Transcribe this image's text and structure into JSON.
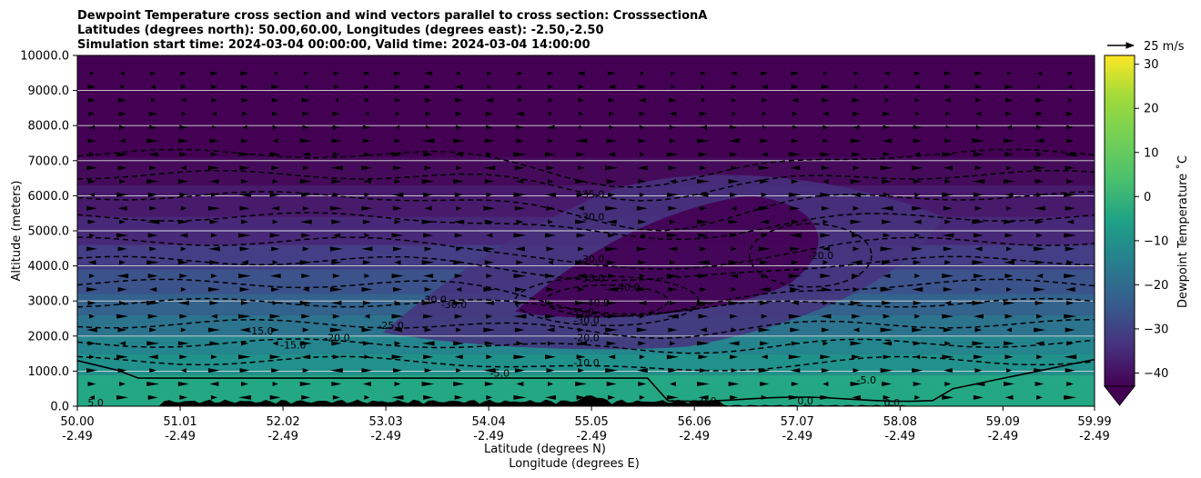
{
  "title": {
    "line1": "Dewpoint Temperature cross section and wind vectors parallel to cross section: CrosssectionA",
    "line2": "Latitudes (degrees north): 50.00,60.00, Longitudes (degrees east): -2.50,-2.50",
    "line3": "Simulation start time: 2024-03-04 00:00:00, Valid time: 2024-03-04 14:00:00"
  },
  "chart_data": {
    "type": "heatmap",
    "ylabel": "Altitude (meters)",
    "xlabel_lat": "Latitude (degrees N)",
    "xlabel_lon": "Longitude (degrees E)",
    "ylim": [
      0,
      10000
    ],
    "y_ticks": [
      "0.0",
      "1000.0",
      "2000.0",
      "3000.0",
      "4000.0",
      "5000.0",
      "6000.0",
      "7000.0",
      "8000.0",
      "9000.0",
      "10000.0"
    ],
    "y_tick_values": [
      0,
      1000,
      2000,
      3000,
      4000,
      5000,
      6000,
      7000,
      8000,
      9000,
      10000
    ],
    "x_ticks": [
      {
        "lat": "50.00",
        "lon": "-2.49"
      },
      {
        "lat": "51.01",
        "lon": "-2.49"
      },
      {
        "lat": "52.02",
        "lon": "-2.49"
      },
      {
        "lat": "53.03",
        "lon": "-2.49"
      },
      {
        "lat": "54.04",
        "lon": "-2.49"
      },
      {
        "lat": "55.05",
        "lon": "-2.49"
      },
      {
        "lat": "56.06",
        "lon": "-2.49"
      },
      {
        "lat": "57.07",
        "lon": "-2.49"
      },
      {
        "lat": "58.08",
        "lon": "-2.49"
      },
      {
        "lat": "59.09",
        "lon": "-2.49"
      },
      {
        "lat": "59.99",
        "lon": "-2.49"
      }
    ],
    "grid": "horizontal lines only",
    "colorbar": {
      "label": "Dewpoint Temperature ˚C",
      "ticks": [
        "30",
        "20",
        "10",
        "0",
        "−10",
        "−20",
        "−30",
        "−40"
      ],
      "tick_values": [
        30,
        20,
        10,
        0,
        -10,
        -20,
        -30,
        -40
      ],
      "range": [
        -43,
        32
      ],
      "extend": "min",
      "colormap": "viridis"
    },
    "wind_key": {
      "label": "25 m/s",
      "value": 25
    },
    "contour_labels": [
      {
        "text": "5.0",
        "lat": 50.18,
        "alt": 100
      },
      {
        "text": "-15.0",
        "lat": 51.8,
        "alt": 2150
      },
      {
        "text": "-15.0",
        "lat": 52.12,
        "alt": 1750
      },
      {
        "text": "-20.0",
        "lat": 52.55,
        "alt": 1950
      },
      {
        "text": "-25.0",
        "lat": 53.08,
        "alt": 2300
      },
      {
        "text": "-30.0",
        "lat": 53.5,
        "alt": 3050
      },
      {
        "text": "-30.0",
        "lat": 53.7,
        "alt": 2900
      },
      {
        "text": "-5.0",
        "lat": 54.15,
        "alt": 950
      },
      {
        "text": "-35.0",
        "lat": 55.05,
        "alt": 6050
      },
      {
        "text": "-30.0",
        "lat": 55.05,
        "alt": 5400
      },
      {
        "text": "-30.0",
        "lat": 55.05,
        "alt": 4200
      },
      {
        "text": "-35.0",
        "lat": 55.05,
        "alt": 3650
      },
      {
        "text": "-40.0",
        "lat": 55.4,
        "alt": 3400
      },
      {
        "text": "-40.0",
        "lat": 55.1,
        "alt": 2950
      },
      {
        "text": "-35.0",
        "lat": 54.95,
        "alt": 2700
      },
      {
        "text": "-30.0",
        "lat": 55.0,
        "alt": 2450
      },
      {
        "text": "-20.0",
        "lat": 55.0,
        "alt": 1950
      },
      {
        "text": "-10.0",
        "lat": 55.0,
        "alt": 1250
      },
      {
        "text": "-20.0",
        "lat": 57.3,
        "alt": 4300
      },
      {
        "text": "-5.0",
        "lat": 57.75,
        "alt": 750
      },
      {
        "text": "0.0",
        "lat": 56.2,
        "alt": 150
      },
      {
        "text": "0.0",
        "lat": 57.15,
        "alt": 150
      },
      {
        "text": "0.0",
        "lat": 58.0,
        "alt": 100
      }
    ]
  }
}
